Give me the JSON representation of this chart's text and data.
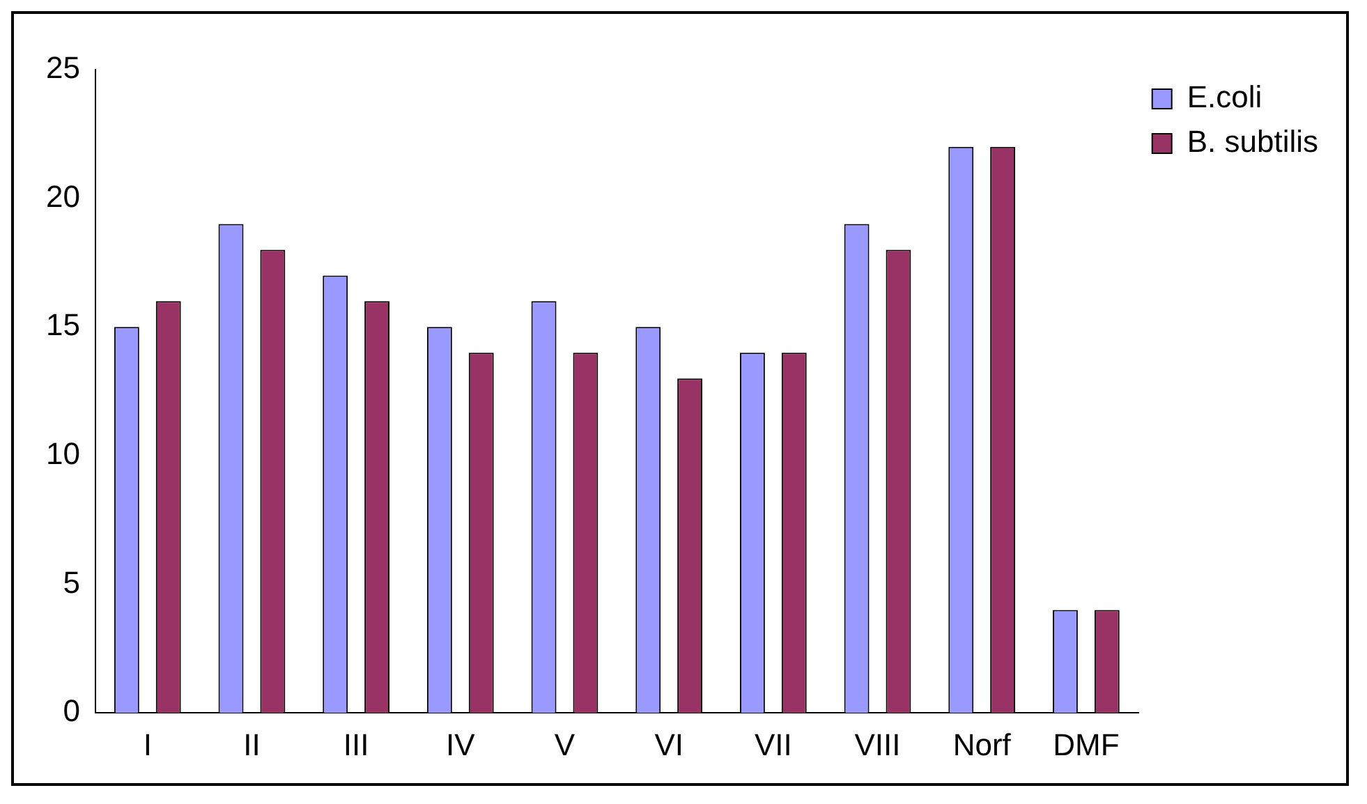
{
  "chart_data": {
    "type": "bar",
    "categories": [
      "I",
      "II",
      "III",
      "IV",
      "V",
      "VI",
      "VII",
      "VIII",
      "Norf",
      "DMF"
    ],
    "series": [
      {
        "name": "E.coli",
        "color": "#9999ff",
        "values": [
          15,
          19,
          17,
          15,
          16,
          15,
          14,
          19,
          22,
          4
        ]
      },
      {
        "name": "B. subtilis",
        "color": "#993366",
        "values": [
          16,
          18,
          16,
          14,
          14,
          13,
          14,
          18,
          22,
          4
        ]
      }
    ],
    "ylim": [
      0,
      25
    ],
    "yticks": [
      0,
      5,
      10,
      15,
      20,
      25
    ],
    "grid": false,
    "legend": "top right"
  }
}
